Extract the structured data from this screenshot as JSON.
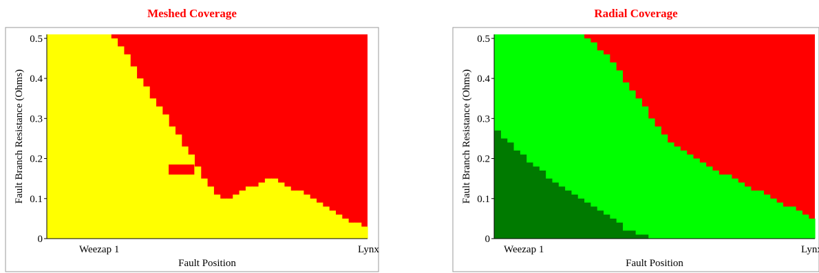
{
  "colors": {
    "yellow": "#ffff00",
    "red": "#ff0000",
    "green": "#00ff00",
    "dark_green": "#007a00",
    "title": "#ff0000"
  },
  "chart_data": [
    {
      "type": "heatmap",
      "title": "Meshed Coverage",
      "xlabel": "Fault Position",
      "ylabel": "Fault Branch Resistance (Ohms)",
      "x_tick_labels": [
        "Weezap 1",
        "Lynx"
      ],
      "y_ticks": [
        "0",
        "0.1",
        "0.2",
        "0.3",
        "0.4",
        "0.5"
      ],
      "ylim": [
        0,
        0.51
      ],
      "x_range": [
        0,
        1
      ],
      "grid": false,
      "x": [
        0.0,
        0.02,
        0.04,
        0.06,
        0.08,
        0.1,
        0.12,
        0.14,
        0.16,
        0.18,
        0.2,
        0.22,
        0.24,
        0.26,
        0.28,
        0.3,
        0.32,
        0.34,
        0.36,
        0.38,
        0.4,
        0.42,
        0.44,
        0.46,
        0.48,
        0.5,
        0.52,
        0.54,
        0.56,
        0.58,
        0.6,
        0.62,
        0.64,
        0.66,
        0.68,
        0.7,
        0.72,
        0.74,
        0.76,
        0.78,
        0.8,
        0.82,
        0.84,
        0.86,
        0.88,
        0.9,
        0.92,
        0.94,
        0.96,
        0.98
      ],
      "series": [
        {
          "color": "#ffff00",
          "values": [
            0.51,
            0.51,
            0.51,
            0.51,
            0.51,
            0.51,
            0.51,
            0.51,
            0.51,
            0.51,
            0.5,
            0.48,
            0.46,
            0.43,
            0.4,
            0.38,
            0.35,
            0.33,
            0.31,
            0.28,
            0.26,
            0.23,
            0.21,
            0.18,
            0.15,
            0.13,
            0.11,
            0.1,
            0.1,
            0.11,
            0.12,
            0.13,
            0.13,
            0.14,
            0.15,
            0.15,
            0.14,
            0.13,
            0.12,
            0.12,
            0.11,
            0.1,
            0.09,
            0.08,
            0.07,
            0.06,
            0.05,
            0.04,
            0.04,
            0.03
          ]
        }
      ],
      "notch": {
        "x": [
          0.38,
          0.46
        ],
        "y": [
          0.17,
          0.175
        ]
      },
      "fill_above": "#ff0000"
    },
    {
      "type": "heatmap",
      "title": "Radial Coverage",
      "xlabel": "Fault Position",
      "ylabel": "Fault Branch Resistance (Ohms)",
      "x_tick_labels": [
        "Weezap 1",
        "Lynx"
      ],
      "y_ticks": [
        "0",
        "0.1",
        "0.2",
        "0.3",
        "0.4",
        "0.5"
      ],
      "ylim": [
        0,
        0.51
      ],
      "x_range": [
        0,
        1
      ],
      "grid": false,
      "x": [
        0.0,
        0.02,
        0.04,
        0.06,
        0.08,
        0.1,
        0.12,
        0.14,
        0.16,
        0.18,
        0.2,
        0.22,
        0.24,
        0.26,
        0.28,
        0.3,
        0.32,
        0.34,
        0.36,
        0.38,
        0.4,
        0.42,
        0.44,
        0.46,
        0.48,
        0.5,
        0.52,
        0.54,
        0.56,
        0.58,
        0.6,
        0.62,
        0.64,
        0.66,
        0.68,
        0.7,
        0.72,
        0.74,
        0.76,
        0.78,
        0.8,
        0.82,
        0.84,
        0.86,
        0.88,
        0.9,
        0.92,
        0.94,
        0.96,
        0.98
      ],
      "series": [
        {
          "color": "#007a00",
          "values": [
            0.27,
            0.25,
            0.24,
            0.22,
            0.21,
            0.19,
            0.18,
            0.17,
            0.15,
            0.14,
            0.13,
            0.12,
            0.11,
            0.1,
            0.09,
            0.08,
            0.07,
            0.06,
            0.05,
            0.04,
            0.02,
            0.02,
            0.01,
            0.01,
            0,
            0,
            0,
            0,
            0,
            0,
            0,
            0,
            0,
            0,
            0,
            0,
            0,
            0,
            0,
            0,
            0,
            0,
            0,
            0,
            0,
            0,
            0,
            0,
            0,
            0
          ]
        },
        {
          "color": "#00ff00",
          "values": [
            0.51,
            0.51,
            0.51,
            0.51,
            0.51,
            0.51,
            0.51,
            0.51,
            0.51,
            0.51,
            0.51,
            0.51,
            0.51,
            0.51,
            0.5,
            0.49,
            0.47,
            0.46,
            0.44,
            0.42,
            0.39,
            0.37,
            0.35,
            0.33,
            0.3,
            0.28,
            0.26,
            0.24,
            0.23,
            0.22,
            0.21,
            0.2,
            0.19,
            0.18,
            0.17,
            0.16,
            0.16,
            0.15,
            0.14,
            0.13,
            0.12,
            0.12,
            0.11,
            0.1,
            0.09,
            0.08,
            0.08,
            0.07,
            0.06,
            0.05
          ]
        }
      ],
      "fill_above": "#ff0000"
    }
  ]
}
